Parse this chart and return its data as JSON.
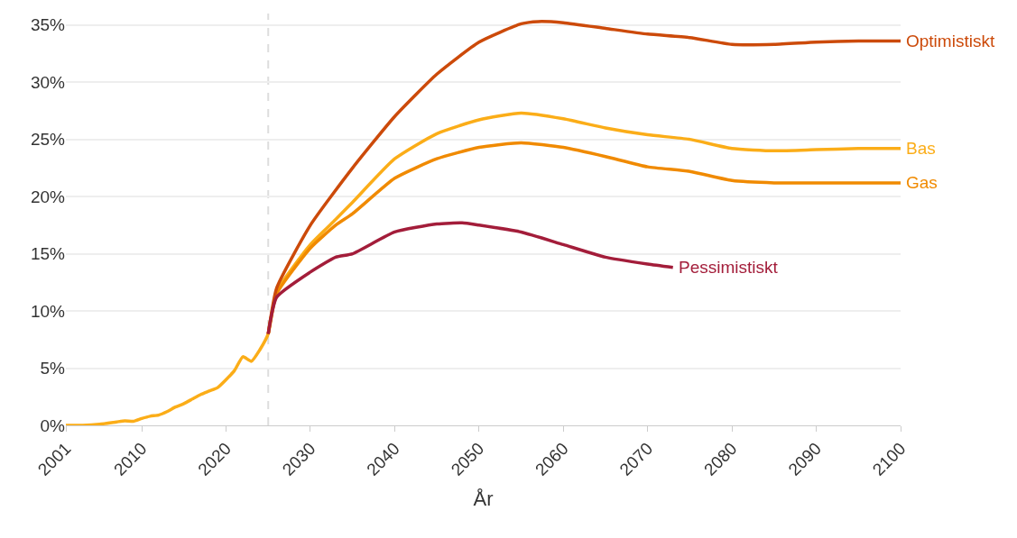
{
  "chart_data": {
    "type": "line",
    "xlabel": "År",
    "xlim": [
      2001,
      2100
    ],
    "xticks": [
      2001,
      2010,
      2020,
      2030,
      2040,
      2050,
      2060,
      2070,
      2080,
      2090,
      2100
    ],
    "ylim": [
      0,
      36
    ],
    "yticks": [
      {
        "value": 0,
        "label": "0%"
      },
      {
        "value": 5,
        "label": "5%"
      },
      {
        "value": 10,
        "label": "10%"
      },
      {
        "value": 15,
        "label": "15%"
      },
      {
        "value": 20,
        "label": "20%"
      },
      {
        "value": 25,
        "label": "25%"
      },
      {
        "value": 30,
        "label": "30%"
      },
      {
        "value": 35,
        "label": "35%"
      }
    ],
    "grid": "y",
    "ref_lines": [
      {
        "axis": "x",
        "value": 2025,
        "color": "#dddddd",
        "line_style": "dashed"
      }
    ],
    "series": [
      {
        "name": "Bas",
        "color": "#fbad18",
        "x": [
          2001,
          2003,
          2005,
          2007,
          2008,
          2009,
          2010,
          2011,
          2012,
          2013,
          2014,
          2015,
          2016,
          2017,
          2018,
          2019,
          2020,
          2021,
          2022,
          2023,
          2024,
          2025,
          2026,
          2030,
          2033,
          2035,
          2040,
          2045,
          2050,
          2055,
          2060,
          2065,
          2070,
          2075,
          2080,
          2085,
          2090,
          2095,
          2100
        ],
        "values": [
          0,
          0,
          0.1,
          0.3,
          0.4,
          0.35,
          0.6,
          0.8,
          0.9,
          1.2,
          1.6,
          1.9,
          2.3,
          2.7,
          3.0,
          3.3,
          4.0,
          4.8,
          6.0,
          5.6,
          6.6,
          8.0,
          11.7,
          15.8,
          18.0,
          19.5,
          23.3,
          25.5,
          26.7,
          27.3,
          26.8,
          26.0,
          25.4,
          25.0,
          24.2,
          24.0,
          24.1,
          24.2,
          24.2
        ]
      },
      {
        "name": "Gas",
        "color": "#f08a00",
        "x": [
          2025,
          2026,
          2030,
          2033,
          2035,
          2040,
          2045,
          2050,
          2055,
          2060,
          2065,
          2070,
          2075,
          2080,
          2085,
          2090,
          2095,
          2100
        ],
        "values": [
          8.0,
          11.5,
          15.5,
          17.5,
          18.5,
          21.6,
          23.3,
          24.3,
          24.7,
          24.3,
          23.5,
          22.6,
          22.2,
          21.4,
          21.2,
          21.2,
          21.2,
          21.2
        ]
      },
      {
        "name": "Optimistiskt",
        "color": "#cc4a0a",
        "x": [
          2025,
          2026,
          2030,
          2035,
          2040,
          2045,
          2050,
          2055,
          2057,
          2060,
          2065,
          2070,
          2075,
          2080,
          2085,
          2090,
          2095,
          2100
        ],
        "values": [
          8.0,
          12.0,
          17.5,
          22.5,
          27.0,
          30.7,
          33.5,
          35.1,
          35.3,
          35.2,
          34.7,
          34.2,
          33.9,
          33.3,
          33.3,
          33.5,
          33.6,
          33.6
        ]
      },
      {
        "name": "Pessimistiskt",
        "color": "#a31d3a",
        "x": [
          2025,
          2026,
          2030,
          2033,
          2035,
          2040,
          2045,
          2048,
          2050,
          2055,
          2060,
          2065,
          2070,
          2073
        ],
        "values": [
          8.0,
          11.2,
          13.4,
          14.7,
          15.0,
          16.9,
          17.6,
          17.7,
          17.5,
          16.9,
          15.8,
          14.7,
          14.1,
          13.8
        ]
      }
    ]
  }
}
